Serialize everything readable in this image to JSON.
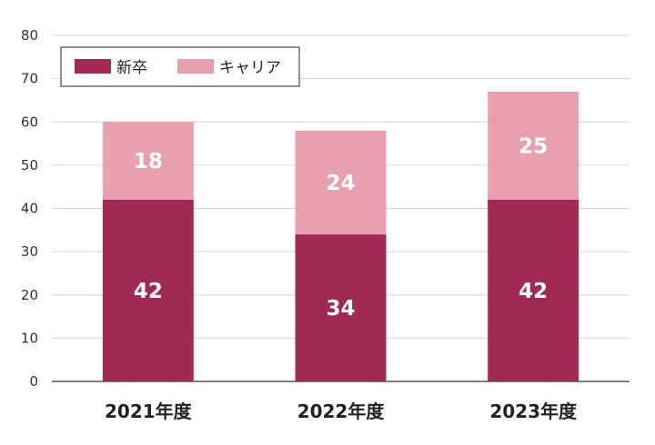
{
  "chart_data": {
    "type": "bar",
    "stacked": true,
    "categories": [
      "2021年度",
      "2022年度",
      "2023年度"
    ],
    "series": [
      {
        "name": "新卒",
        "values": [
          42,
          34,
          42
        ],
        "color": "#a12a55"
      },
      {
        "name": "キャリア",
        "values": [
          18,
          24,
          25
        ],
        "color": "#e9a0ae"
      }
    ],
    "title": "",
    "xlabel": "",
    "ylabel": "",
    "ylim": [
      0,
      80
    ],
    "yticks": [
      "0",
      "10",
      "20",
      "30",
      "40",
      "50",
      "60",
      "70",
      "80"
    ],
    "grid": true,
    "legend_position": "top-left",
    "data_labels": true
  }
}
